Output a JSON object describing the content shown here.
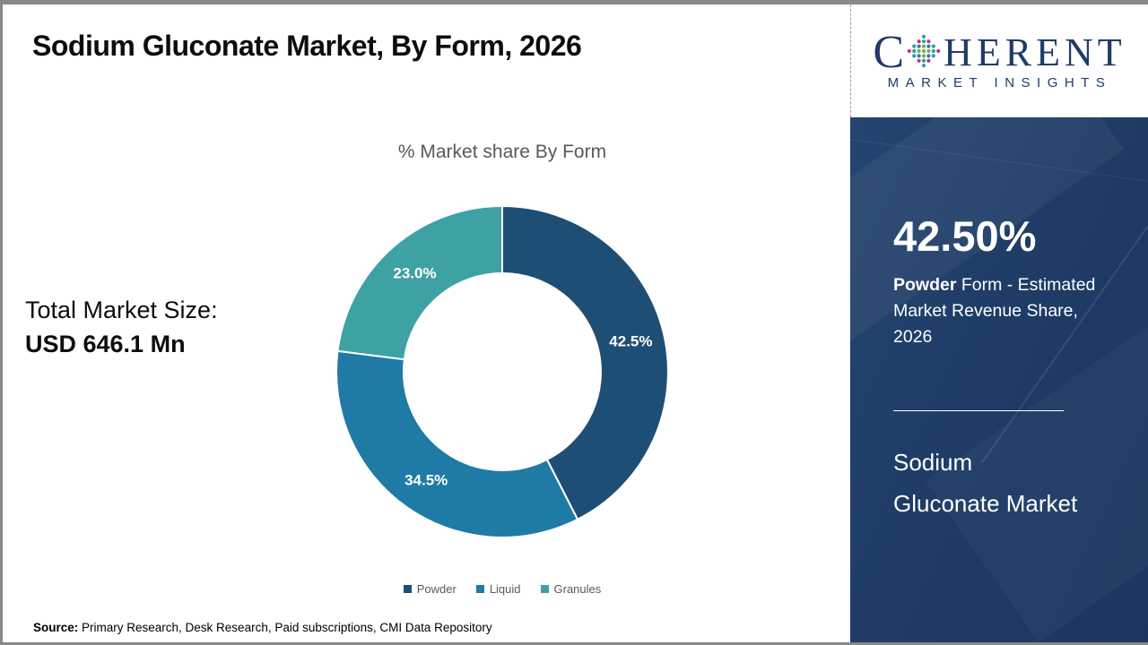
{
  "header": {
    "title": "Sodium Gluconate Market, By Form, 2026"
  },
  "logo": {
    "word_c": "C",
    "word_rest": "HERENT",
    "tagline": "MARKET INSIGHTS",
    "colors": {
      "navy": "#1f3a68",
      "green": "#76b043",
      "teal": "#2e9fa3",
      "pink": "#c2308c",
      "blue": "#2a7db5"
    }
  },
  "left_panel": {
    "label": "Total Market Size:",
    "value": "USD 646.1 Mn"
  },
  "chart_data": {
    "type": "pie",
    "variant": "donut",
    "title": "% Market share By Form",
    "categories": [
      "Powder",
      "Liquid",
      "Granules"
    ],
    "values": [
      42.5,
      34.5,
      23.0
    ],
    "labels": [
      "42.5%",
      "34.5%",
      "23.0%"
    ],
    "colors": [
      "#1F4E74",
      "#1F7AA6",
      "#3EA1A4"
    ],
    "label_color": "#FFFFFF",
    "legend_position": "bottom",
    "start_angle_deg": 0,
    "direction": "clockwise",
    "inner_radius_ratio": 0.595
  },
  "sidebar": {
    "stat_value": "42.50%",
    "stat_desc_bold": "Powder",
    "stat_desc_rest": " Form - Estimated Market Revenue Share, 2026",
    "product_line1": "Sodium",
    "product_line2": "Gluconate Market",
    "background": "#1E3C66"
  },
  "source": {
    "label": "Source:",
    "text": " Primary Research, Desk Research, Paid subscriptions, CMI Data Repository"
  },
  "theme": {
    "frame_border": "#898989",
    "title_color": "#0d0d0d",
    "muted_text": "#595959"
  }
}
